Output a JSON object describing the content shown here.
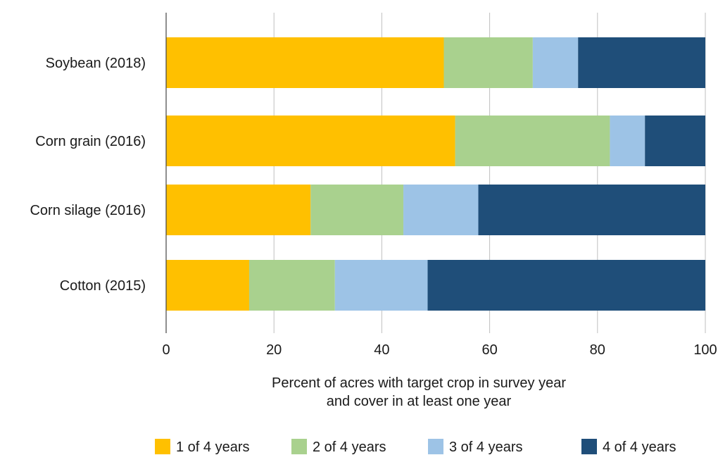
{
  "chart_data": {
    "type": "bar",
    "orientation": "horizontal",
    "stacked": true,
    "categories": [
      "Soybean (2018)",
      "Corn grain (2016)",
      "Corn silage (2016)",
      "Cotton (2015)"
    ],
    "series": [
      {
        "name": "1 of 4 years",
        "color": "#FFC000",
        "values": [
          51.5,
          53.6,
          26.8,
          15.4
        ]
      },
      {
        "name": "2 of 4 years",
        "color": "#A9D18E",
        "values": [
          16.5,
          28.7,
          17.2,
          15.9
        ]
      },
      {
        "name": "3 of 4 years",
        "color": "#9DC3E6",
        "values": [
          8.4,
          6.5,
          13.9,
          17.2
        ]
      },
      {
        "name": "4 of 4 years",
        "color": "#1F4E79",
        "values": [
          23.6,
          11.2,
          42.1,
          51.5
        ]
      }
    ],
    "xlim": [
      0,
      100
    ],
    "xticks": [
      0,
      20,
      40,
      60,
      80,
      100
    ],
    "xlabel_lines": [
      "Percent of acres with target crop in survey year",
      "and cover in at least one year"
    ],
    "grid": "vertical",
    "legend_position": "bottom"
  }
}
